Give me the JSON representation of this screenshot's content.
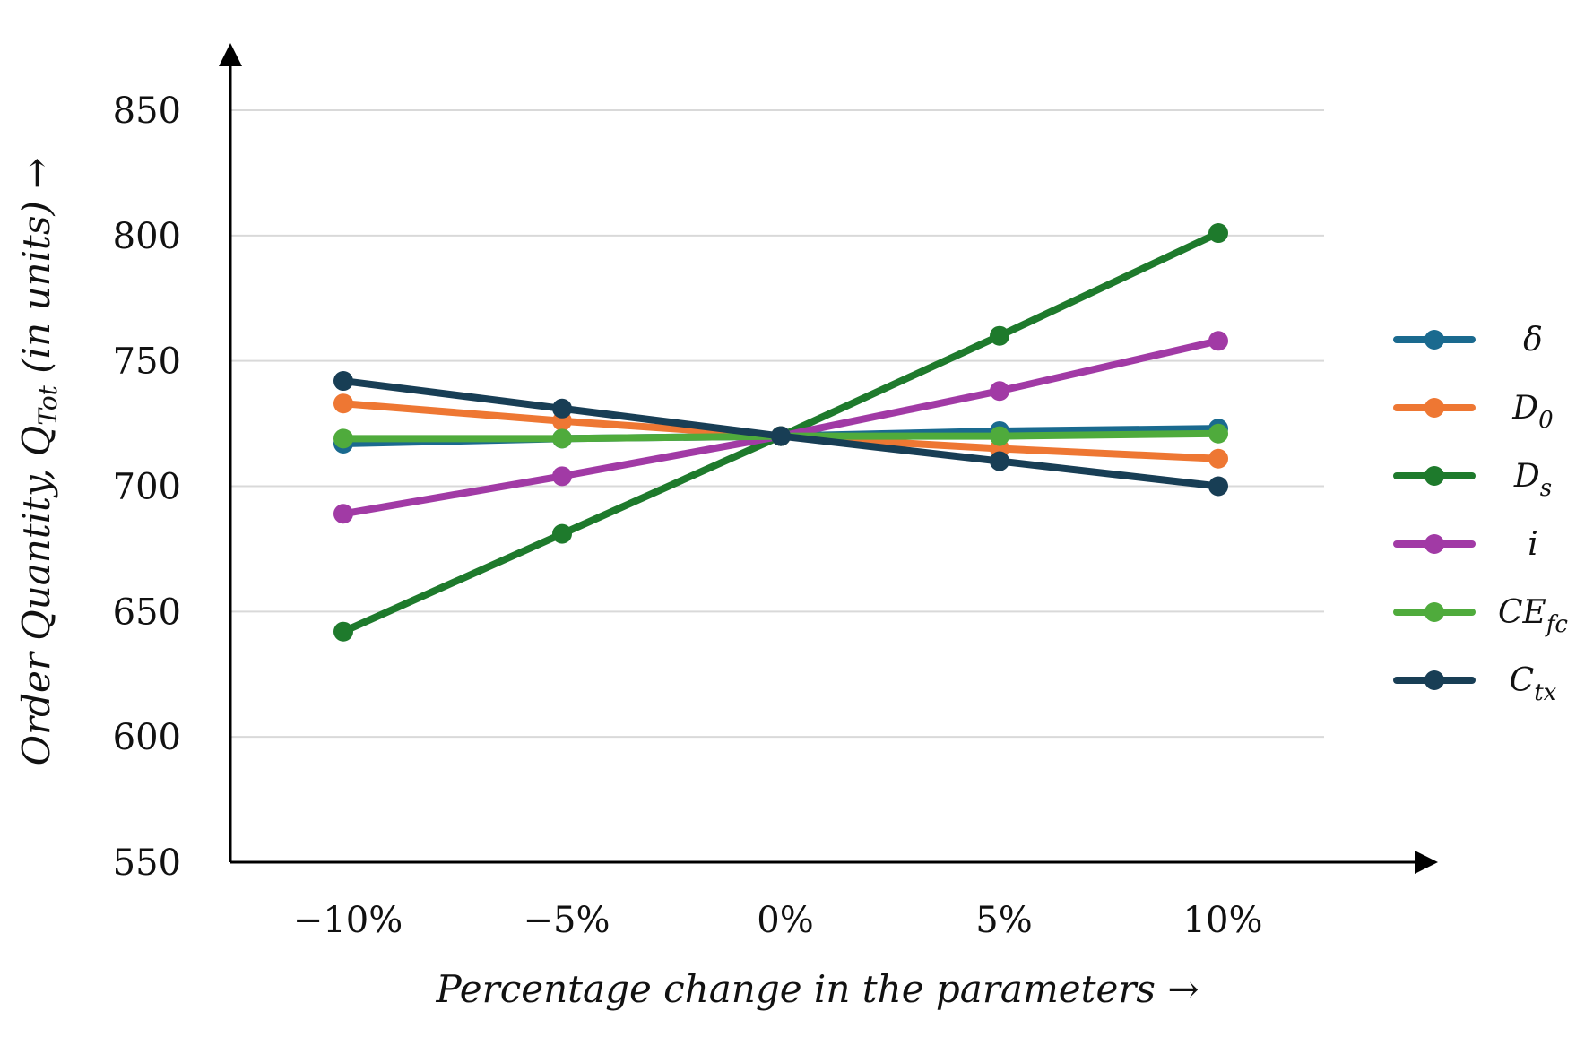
{
  "chart_data": {
    "type": "line",
    "x": [
      "−10%",
      "−5%",
      "0%",
      "5%",
      "10%"
    ],
    "xlabel": "Percentage change in the parameters →",
    "ylabel": {
      "prefix": "Order Quantity, ",
      "symbol": "Q",
      "subscript": "Tot",
      "suffix": " (in units) →"
    },
    "ylim": [
      550,
      850
    ],
    "yticks": [
      "550",
      "600",
      "650",
      "700",
      "750",
      "800",
      "850"
    ],
    "grid": true,
    "legend_position": "right",
    "series": [
      {
        "name": "δ",
        "sub": "",
        "color": "#1a6a8f",
        "values": [
          717,
          719,
          720,
          722,
          723
        ]
      },
      {
        "name": "D",
        "sub": "0",
        "color": "#ee7733",
        "values": [
          733,
          726,
          720,
          715,
          711
        ]
      },
      {
        "name": "D",
        "sub": "s",
        "color": "#1e7a2c",
        "values": [
          642,
          681,
          720,
          760,
          801
        ]
      },
      {
        "name": "i",
        "sub": "",
        "color": "#a13aa5",
        "values": [
          689,
          704,
          720,
          738,
          758
        ]
      },
      {
        "name": "CE",
        "sub": "fc",
        "color": "#4fab3c",
        "values": [
          719,
          719,
          720,
          720,
          721
        ]
      },
      {
        "name": "C",
        "sub": "tx",
        "color": "#183e55",
        "values": [
          742,
          731,
          720,
          710,
          700
        ]
      }
    ]
  }
}
